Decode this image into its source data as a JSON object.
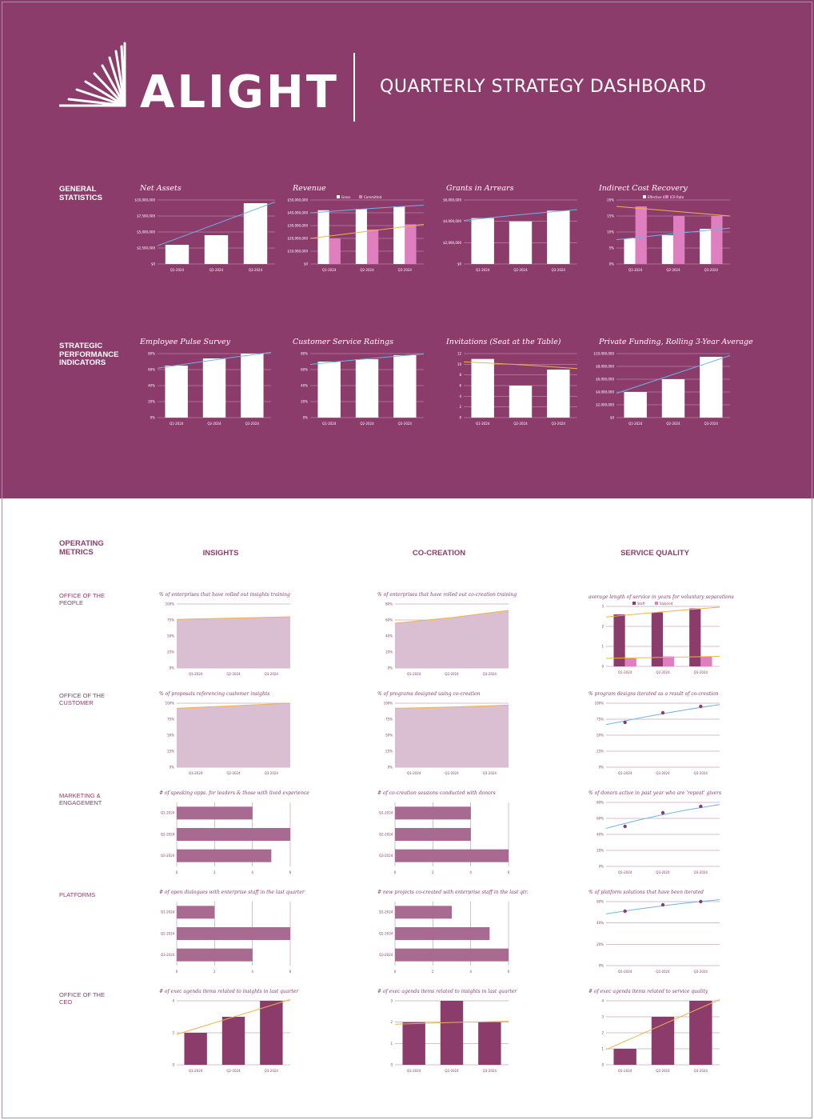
{
  "header": {
    "brand": "ALIGHT",
    "title": "QUARTERLY STRATEGY DASHBOARD"
  },
  "colors": {
    "plum": "#8b3c6b",
    "bar_white": "#ffffff",
    "bar_pink": "#e07fbf",
    "bar_op": "#a86a90",
    "area_fill": "#d9bfd1",
    "line_blue": "#6fb3e6",
    "line_orange": "#f0b24a",
    "dot": "#8b3c6b"
  },
  "sections": {
    "general": "GENERAL STATISTICS",
    "strategic": "STRATEGIC PERFORMANCE INDICATORS",
    "operating": "OPERATING METRICS"
  },
  "columns": [
    "INSIGHTS",
    "CO-CREATION",
    "SERVICE QUALITY"
  ],
  "rows": [
    "OFFICE OF THE PEOPLE",
    "OFFICE OF THE CUSTOMER",
    "MARKETING & ENGAGEMENT",
    "PLATFORMS",
    "OFFICE OF THE CEO"
  ],
  "chart_data": [
    {
      "id": "net-assets",
      "type": "bar",
      "title": "Net Assets",
      "categories": [
        "Q1-2024",
        "Q2-2024",
        "Q3-2024"
      ],
      "series": [
        {
          "values": [
            3000000,
            4500000,
            9500000
          ]
        }
      ],
      "trend": "blue",
      "ylim": [
        0,
        10000000
      ],
      "yticks": [
        "$0",
        "$2,500,000",
        "$5,000,000",
        "$7,500,000",
        "$10,000,000"
      ]
    },
    {
      "id": "revenue",
      "type": "bar",
      "title": "Revenue",
      "legend": [
        "Gross",
        "Committed"
      ],
      "categories": [
        "Q1-2024",
        "Q2-2024",
        "Q3-2024"
      ],
      "series": [
        {
          "name": "Gross",
          "values": [
            42000000,
            43000000,
            45000000
          ]
        },
        {
          "name": "Committed",
          "values": [
            20000000,
            27000000,
            31000000
          ]
        }
      ],
      "ylim": [
        0,
        50000000
      ],
      "yticks": [
        "$0",
        "$10,000,000",
        "$20,000,000",
        "$30,000,000",
        "$40,000,000",
        "$50,000,000"
      ]
    },
    {
      "id": "grants-arrears",
      "type": "bar",
      "title": "Grants in Arrears",
      "categories": [
        "Q1-2024",
        "Q2-2024",
        "Q3-2024"
      ],
      "series": [
        {
          "values": [
            4300000,
            4000000,
            5000000
          ]
        }
      ],
      "ylim": [
        0,
        6000000
      ],
      "yticks": [
        "$0",
        "$2,000,000",
        "$4,000,000",
        "$6,000,000"
      ]
    },
    {
      "id": "indirect-cost",
      "type": "bar",
      "title": "Indirect Cost Recovery",
      "legend": [
        "Effective ICR",
        "ICR Rate"
      ],
      "categories": [
        "Q1-2024",
        "Q2-2024",
        "Q3-2024"
      ],
      "series": [
        {
          "name": "Effective ICR",
          "values": [
            8,
            9,
            11
          ]
        },
        {
          "name": "ICR Rate",
          "values": [
            18,
            15,
            15
          ]
        }
      ],
      "ylim": [
        0,
        20
      ],
      "yticks": [
        "0%",
        "5%",
        "10%",
        "15%",
        "20%"
      ]
    },
    {
      "id": "employee-pulse",
      "type": "bar",
      "title": "Employee Pulse Survey",
      "categories": [
        "Q1-2024",
        "Q2-2024",
        "Q3-2024"
      ],
      "series": [
        {
          "values": [
            65,
            74,
            80
          ]
        }
      ],
      "ylim": [
        0,
        80
      ],
      "yticks": [
        "0%",
        "20%",
        "40%",
        "60%",
        "80%"
      ]
    },
    {
      "id": "customer-service",
      "type": "bar",
      "title": "Customer Service Ratings",
      "categories": [
        "Q1-2024",
        "Q2-2024",
        "Q3-2024"
      ],
      "series": [
        {
          "values": [
            70,
            73,
            78
          ]
        }
      ],
      "ylim": [
        0,
        80
      ],
      "yticks": [
        "0%",
        "20%",
        "40%",
        "60%",
        "80%"
      ]
    },
    {
      "id": "invitations",
      "type": "bar",
      "title": "Invitations (Seat at the Table)",
      "categories": [
        "Q1-2024",
        "Q2-2024",
        "Q3-2024"
      ],
      "series": [
        {
          "values": [
            11,
            6,
            9
          ]
        }
      ],
      "ylim": [
        0,
        12
      ],
      "yticks": [
        "0",
        "2",
        "4",
        "6",
        "8",
        "10",
        "12"
      ]
    },
    {
      "id": "private-funding",
      "type": "bar",
      "title": "Private Funding, Rolling 3-Year Average",
      "categories": [
        "Q1-2024",
        "Q2-2024",
        "Q3-2024"
      ],
      "series": [
        {
          "values": [
            4000000,
            6000000,
            9500000
          ]
        }
      ],
      "ylim": [
        0,
        10000000
      ],
      "yticks": [
        "$0",
        "$2,000,000",
        "$4,000,000",
        "$6,000,000",
        "$8,000,000",
        "$10,000,000"
      ]
    },
    {
      "id": "op-insights-1",
      "type": "area",
      "title": "% of enterprises that have rolled out insights training",
      "categories": [
        "Q1-2024",
        "Q2-2024",
        "Q3-2024"
      ],
      "values": [
        76,
        78,
        80
      ],
      "ylim": [
        0,
        100
      ],
      "yticks": [
        "0%",
        "25%",
        "50%",
        "75%",
        "100%"
      ]
    },
    {
      "id": "op-cocreation-1",
      "type": "area",
      "title": "% of enterprises that have rolled out co-creation training",
      "categories": [
        "Q1-2024",
        "Q2-2024",
        "Q3-2024"
      ],
      "values": [
        56,
        63,
        72
      ],
      "ylim": [
        0,
        80
      ],
      "yticks": [
        "0%",
        "20%",
        "40%",
        "60%",
        "80%"
      ]
    },
    {
      "id": "op-service-1",
      "type": "bar",
      "title": "average length of service in years for voluntary separations",
      "legend": [
        "Staff",
        "Salaried"
      ],
      "categories": [
        "Q1-2024",
        "Q2-2024",
        "Q3-2024"
      ],
      "series": [
        {
          "name": "Staff",
          "values": [
            2.6,
            2.7,
            2.9
          ]
        },
        {
          "name": "Salaried",
          "values": [
            0.4,
            0.5,
            0.5
          ]
        }
      ],
      "ylim": [
        0,
        3
      ],
      "yticks": [
        "0",
        "1",
        "2",
        "3"
      ]
    },
    {
      "id": "op-insights-2",
      "type": "area",
      "title": "% of proposals referencing customer insights",
      "categories": [
        "Q1-2024",
        "Q2-2024",
        "Q3-2024"
      ],
      "values": [
        92,
        96,
        100
      ],
      "ylim": [
        0,
        100
      ],
      "yticks": [
        "0%",
        "25%",
        "50%",
        "75%",
        "100%"
      ]
    },
    {
      "id": "op-cocreation-2",
      "type": "area",
      "title": "% of programs designed using co-creation",
      "categories": [
        "Q1-2024",
        "Q2-2024",
        "Q3-2024"
      ],
      "values": [
        92,
        94,
        97
      ],
      "ylim": [
        0,
        100
      ],
      "yticks": [
        "0%",
        "25%",
        "50%",
        "75%",
        "100%"
      ]
    },
    {
      "id": "op-service-2",
      "type": "scatter",
      "title": "% program designs iterated as a result of co-creation",
      "categories": [
        "Q1-2024",
        "Q2-2024",
        "Q3-2024"
      ],
      "values": [
        70,
        85,
        95
      ],
      "ylim": [
        0,
        100
      ],
      "yticks": [
        "0%",
        "25%",
        "50%",
        "75%",
        "100%"
      ]
    },
    {
      "id": "op-insights-3",
      "type": "hbar",
      "title": "# of speaking opps. for leaders & those with lived experience",
      "categories": [
        "Q1-2024",
        "Q2-2024",
        "Q3-2024"
      ],
      "values": [
        4,
        6,
        5
      ],
      "xlim": [
        0,
        6
      ],
      "xticks": [
        "0",
        "2",
        "4",
        "6"
      ]
    },
    {
      "id": "op-cocreation-3",
      "type": "hbar",
      "title": "# of co-creation sessions conducted with donors",
      "categories": [
        "Q1-2024",
        "Q2-2024",
        "Q3-2024"
      ],
      "values": [
        4,
        4,
        6
      ],
      "xlim": [
        0,
        6
      ],
      "xticks": [
        "0",
        "2",
        "4",
        "6"
      ]
    },
    {
      "id": "op-service-3",
      "type": "scatter",
      "title": "% of donors active in past year who are 'repeat' givers",
      "categories": [
        "Q1-2024",
        "Q2-2024",
        "Q3-2024"
      ],
      "values": [
        50,
        67,
        75
      ],
      "ylim": [
        0,
        80
      ],
      "yticks": [
        "0%",
        "20%",
        "40%",
        "60%",
        "80%"
      ]
    },
    {
      "id": "op-insights-4",
      "type": "hbar",
      "title": "# of open dialogues with enterprise staff in the last quarter",
      "categories": [
        "Q1-2024",
        "Q2-2024",
        "Q3-2024"
      ],
      "values": [
        2,
        6,
        4
      ],
      "xlim": [
        0,
        6
      ],
      "xticks": [
        "0",
        "2",
        "4",
        "6"
      ]
    },
    {
      "id": "op-cocreation-4",
      "type": "hbar",
      "title": "# new projects co-created with enterprise staff in the last qtr.",
      "categories": [
        "Q1-2024",
        "Q2-2024",
        "Q3-2024"
      ],
      "values": [
        3,
        5,
        6
      ],
      "xlim": [
        0,
        6
      ],
      "xticks": [
        "0",
        "2",
        "4",
        "6"
      ]
    },
    {
      "id": "op-service-4",
      "type": "scatter",
      "title": "% of platform solutions that have been iterated",
      "categories": [
        "Q1-2024",
        "Q2-2024",
        "Q3-2024"
      ],
      "values": [
        51,
        57,
        60
      ],
      "ylim": [
        0,
        60
      ],
      "yticks": [
        "0%",
        "20%",
        "40%",
        "60%"
      ]
    },
    {
      "id": "op-insights-5",
      "type": "bar",
      "title": "# of exec agenda items related to insights in last quarter",
      "categories": [
        "Q1-2024",
        "Q2-2024",
        "Q3-2024"
      ],
      "series": [
        {
          "values": [
            2,
            3,
            4
          ]
        }
      ],
      "ylim": [
        0,
        4
      ],
      "yticks": [
        "0",
        "2",
        "4"
      ]
    },
    {
      "id": "op-cocreation-5",
      "type": "bar",
      "title": "# of exec agenda items related to insights in last quarter",
      "categories": [
        "Q1-2024",
        "Q2-2024",
        "Q3-2024"
      ],
      "series": [
        {
          "values": [
            2,
            3,
            2
          ]
        }
      ],
      "ylim": [
        0,
        3
      ],
      "yticks": [
        "0",
        "1",
        "2",
        "3"
      ]
    },
    {
      "id": "op-service-5",
      "type": "bar",
      "title": "# of exec agenda items related to service quality",
      "categories": [
        "Q1-2024",
        "Q2-2024",
        "Q3-2024"
      ],
      "series": [
        {
          "values": [
            1,
            3,
            4
          ]
        }
      ],
      "ylim": [
        0,
        4
      ],
      "yticks": [
        "0",
        "1",
        "2",
        "3",
        "4"
      ]
    }
  ]
}
